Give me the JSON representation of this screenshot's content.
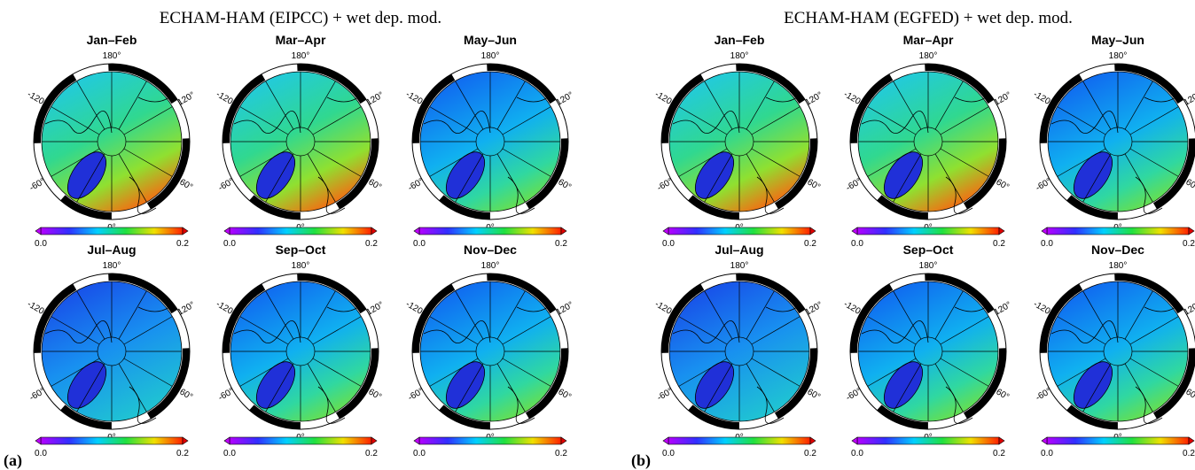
{
  "panels": [
    {
      "label": "(a)",
      "title": "ECHAM-HAM (EIPCC) + wet dep. mod.",
      "maps": [
        "Jan–Feb",
        "Mar–Apr",
        "May–Jun",
        "Jul–Aug",
        "Sep–Oct",
        "Nov–Dec"
      ]
    },
    {
      "label": "(b)",
      "title": "ECHAM-HAM (EGFED) + wet dep. mod.",
      "maps": [
        "Jan–Feb",
        "Mar–Apr",
        "May–Jun",
        "Jul–Aug",
        "Sep–Oct",
        "Nov–Dec"
      ]
    }
  ],
  "lon_labels": [
    "180°",
    "120°",
    "60°",
    "0°",
    "-60°",
    "-120°"
  ],
  "colorbar": {
    "min": "0.0",
    "max": "0.2"
  }
}
